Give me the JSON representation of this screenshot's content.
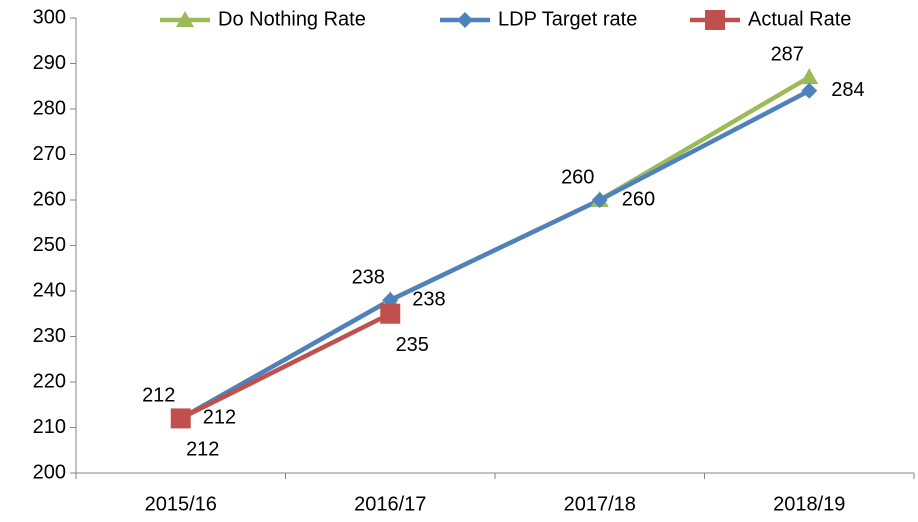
{
  "chart_data": {
    "type": "line",
    "categories": [
      "2015/16",
      "2016/17",
      "2017/18",
      "2018/19"
    ],
    "series": [
      {
        "name": "Do Nothing Rate",
        "color": "#9bbb59",
        "marker": "triangle",
        "values": [
          212,
          238,
          260,
          287
        ]
      },
      {
        "name": "LDP Target rate",
        "color": "#4f81bd",
        "marker": "diamond",
        "values": [
          212,
          238,
          260,
          284
        ]
      },
      {
        "name": "Actual Rate",
        "color": "#c0504d",
        "marker": "square",
        "values": [
          212,
          235,
          null,
          null
        ]
      }
    ],
    "ylim": [
      200,
      300
    ],
    "yticks": [
      200,
      210,
      220,
      230,
      240,
      250,
      260,
      270,
      280,
      290,
      300
    ],
    "grid": false,
    "legend": "top"
  }
}
